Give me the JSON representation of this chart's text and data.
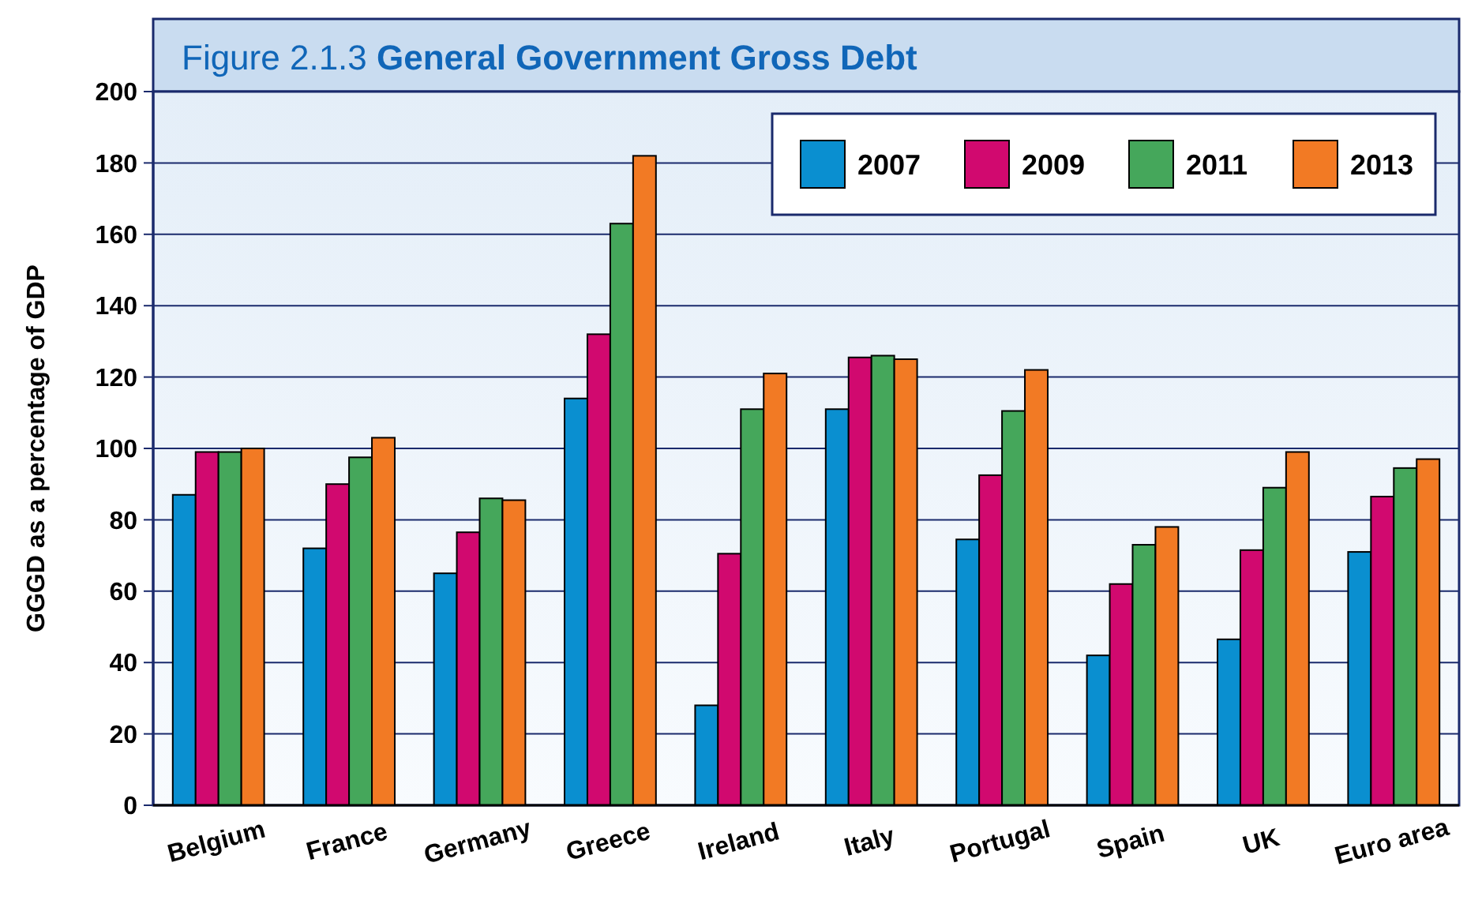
{
  "chart_data": {
    "type": "bar",
    "title": "Figure 2.1.3 General Government Gross Debt",
    "ylabel": "GGGD as a percentage of GDP",
    "categories": [
      "Belgium",
      "France",
      "Germany",
      "Greece",
      "Ireland",
      "Italy",
      "Portugal",
      "Spain",
      "UK",
      "Euro area"
    ],
    "series": [
      {
        "name": "2007",
        "color": "#0a8fd0",
        "values": [
          87,
          72,
          65,
          114,
          28,
          111,
          74.5,
          42,
          46.5,
          71
        ]
      },
      {
        "name": "2009",
        "color": "#d1096f",
        "values": [
          99,
          90,
          76.5,
          132,
          70.5,
          125.5,
          92.5,
          62,
          71.5,
          86.5
        ]
      },
      {
        "name": "2011",
        "color": "#45a75b",
        "values": [
          99,
          97.5,
          86,
          163,
          111,
          126,
          110.5,
          73,
          89,
          94.5
        ]
      },
      {
        "name": "2013",
        "color": "#f27a24",
        "values": [
          100,
          103,
          85.5,
          182,
          121,
          125,
          122,
          78,
          99,
          97
        ]
      }
    ],
    "ylim": [
      0,
      200
    ],
    "yticks": [
      0,
      20,
      40,
      60,
      80,
      100,
      120,
      140,
      160,
      180,
      200
    ],
    "grid": "y",
    "legend": "top right"
  }
}
